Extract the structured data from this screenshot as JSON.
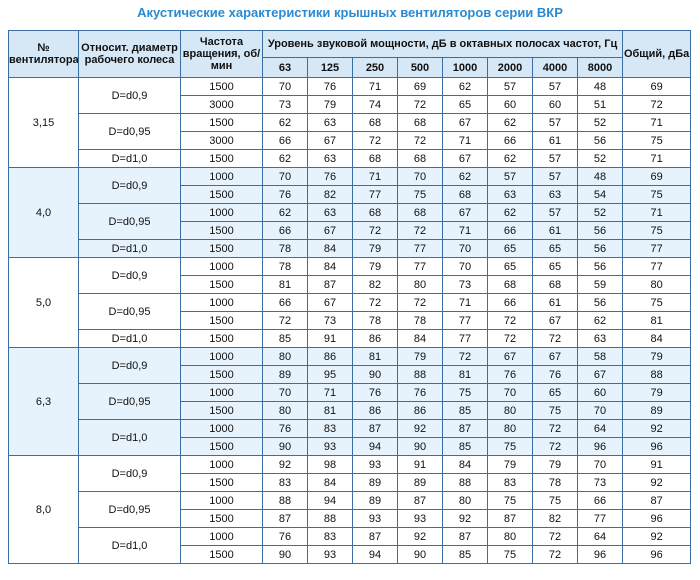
{
  "title": "Акустические характеристики крышных вентиляторов серии ВКР",
  "header": {
    "fan_no": "№ вентилятора",
    "diameter": "Относит. диаметр рабочего колеса",
    "speed": "Частота вращения, об/мин",
    "levels": "Уровень звуковой мощности, дБ в октавных полосах частот, Гц",
    "bands": [
      "63",
      "125",
      "250",
      "500",
      "1000",
      "2000",
      "4000",
      "8000"
    ],
    "total": "Общий, дБа"
  },
  "groups": [
    {
      "fan": "3,15",
      "variants": [
        {
          "diameter": "D=d0,9",
          "rows": [
            {
              "speed": "1500",
              "levels": [
                70,
                76,
                71,
                69,
                62,
                57,
                57,
                48
              ],
              "total": 69
            },
            {
              "speed": "3000",
              "levels": [
                73,
                79,
                74,
                72,
                65,
                60,
                60,
                51
              ],
              "total": 72
            }
          ]
        },
        {
          "diameter": "D=d0,95",
          "rows": [
            {
              "speed": "1500",
              "levels": [
                62,
                63,
                68,
                68,
                67,
                62,
                57,
                52
              ],
              "total": 71
            },
            {
              "speed": "3000",
              "levels": [
                66,
                67,
                72,
                72,
                71,
                66,
                61,
                56
              ],
              "total": 75
            }
          ]
        },
        {
          "diameter": "D=d1,0",
          "rows": [
            {
              "speed": "1500",
              "levels": [
                62,
                63,
                68,
                68,
                67,
                62,
                57,
                52
              ],
              "total": 71
            }
          ]
        }
      ]
    },
    {
      "fan": "4,0",
      "variants": [
        {
          "diameter": "D=d0,9",
          "rows": [
            {
              "speed": "1000",
              "levels": [
                70,
                76,
                71,
                70,
                62,
                57,
                57,
                48
              ],
              "total": 69
            },
            {
              "speed": "1500",
              "levels": [
                76,
                82,
                77,
                75,
                68,
                63,
                63,
                54
              ],
              "total": 75
            }
          ]
        },
        {
          "diameter": "D=d0,95",
          "rows": [
            {
              "speed": "1000",
              "levels": [
                62,
                63,
                68,
                68,
                67,
                62,
                57,
                52
              ],
              "total": 71
            },
            {
              "speed": "1500",
              "levels": [
                66,
                67,
                72,
                72,
                71,
                66,
                61,
                56
              ],
              "total": 75
            }
          ]
        },
        {
          "diameter": "D=d1,0",
          "rows": [
            {
              "speed": "1500",
              "levels": [
                78,
                84,
                79,
                77,
                70,
                65,
                65,
                56
              ],
              "total": 77
            }
          ]
        }
      ]
    },
    {
      "fan": "5,0",
      "variants": [
        {
          "diameter": "D=d0,9",
          "rows": [
            {
              "speed": "1000",
              "levels": [
                78,
                84,
                79,
                77,
                70,
                65,
                65,
                56
              ],
              "total": 77
            },
            {
              "speed": "1500",
              "levels": [
                81,
                87,
                82,
                80,
                73,
                68,
                68,
                59
              ],
              "total": 80
            }
          ]
        },
        {
          "diameter": "D=d0,95",
          "rows": [
            {
              "speed": "1000",
              "levels": [
                66,
                67,
                72,
                72,
                71,
                66,
                61,
                56
              ],
              "total": 75
            },
            {
              "speed": "1500",
              "levels": [
                72,
                73,
                78,
                78,
                77,
                72,
                67,
                62
              ],
              "total": 81
            }
          ]
        },
        {
          "diameter": "D=d1,0",
          "rows": [
            {
              "speed": "1500",
              "levels": [
                85,
                91,
                86,
                84,
                77,
                72,
                72,
                63
              ],
              "total": 84
            }
          ]
        }
      ]
    },
    {
      "fan": "6,3",
      "variants": [
        {
          "diameter": "D=d0,9",
          "rows": [
            {
              "speed": "1000",
              "levels": [
                80,
                86,
                81,
                79,
                72,
                67,
                67,
                58
              ],
              "total": 79
            },
            {
              "speed": "1500",
              "levels": [
                89,
                95,
                90,
                88,
                81,
                76,
                76,
                67
              ],
              "total": 88
            }
          ]
        },
        {
          "diameter": "D=d0,95",
          "rows": [
            {
              "speed": "1000",
              "levels": [
                70,
                71,
                76,
                76,
                75,
                70,
                65,
                60
              ],
              "total": 79
            },
            {
              "speed": "1500",
              "levels": [
                80,
                81,
                86,
                86,
                85,
                80,
                75,
                70
              ],
              "total": 89
            }
          ]
        },
        {
          "diameter": "D=d1,0",
          "rows": [
            {
              "speed": "1000",
              "levels": [
                76,
                83,
                87,
                92,
                87,
                80,
                72,
                64
              ],
              "total": 92
            },
            {
              "speed": "1500",
              "levels": [
                90,
                93,
                94,
                90,
                85,
                75,
                72,
                96
              ],
              "total": 96
            }
          ]
        }
      ]
    },
    {
      "fan": "8,0",
      "variants": [
        {
          "diameter": "D=d0,9",
          "rows": [
            {
              "speed": "1000",
              "levels": [
                92,
                98,
                93,
                91,
                84,
                79,
                79,
                70
              ],
              "total": 91
            },
            {
              "speed": "1500",
              "levels": [
                83,
                84,
                89,
                89,
                88,
                83,
                78,
                73
              ],
              "total": 92
            }
          ]
        },
        {
          "diameter": "D=d0,95",
          "rows": [
            {
              "speed": "1000",
              "levels": [
                88,
                94,
                89,
                87,
                80,
                75,
                75,
                66
              ],
              "total": 87
            },
            {
              "speed": "1500",
              "levels": [
                87,
                88,
                93,
                93,
                92,
                87,
                82,
                77
              ],
              "total": 96
            }
          ]
        },
        {
          "diameter": "D=d1,0",
          "rows": [
            {
              "speed": "1000",
              "levels": [
                76,
                83,
                87,
                92,
                87,
                80,
                72,
                64
              ],
              "total": 92
            },
            {
              "speed": "1500",
              "levels": [
                90,
                93,
                94,
                90,
                85,
                75,
                72,
                96
              ],
              "total": 96
            }
          ]
        }
      ]
    }
  ]
}
